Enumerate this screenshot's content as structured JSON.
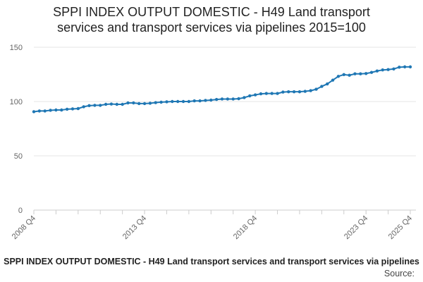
{
  "chart_data": {
    "type": "line",
    "title": "SPPI INDEX OUTPUT DOMESTIC - H49 Land transport services and transport services via pipelines 2015=100",
    "title_lines": [
      "SPPI INDEX OUTPUT DOMESTIC - H49 Land transport",
      "services and transport services via pipelines 2015=100"
    ],
    "xlabel": "SPPI INDEX OUTPUT DOMESTIC - H49 Land transport services and transport services via pipelines",
    "source_label": "Source:",
    "ylim": [
      0,
      150
    ],
    "yticks": [
      0,
      50,
      100,
      150
    ],
    "grid": true,
    "x_tick_labels": [
      {
        "index": 0,
        "label": "2008 Q4"
      },
      {
        "index": 20,
        "label": "2013 Q4"
      },
      {
        "index": 40,
        "label": "2018 Q4"
      },
      {
        "index": 60,
        "label": "2023 Q4"
      },
      {
        "index": 68,
        "label": "2025 Q4"
      }
    ],
    "series": [
      {
        "name": "SPPI INDEX OUTPUT DOMESTIC - H49 Land transport services and transport services via pipelines",
        "color": "#1f77b4",
        "x": [
          "2008 Q4",
          "2009 Q1",
          "2009 Q2",
          "2009 Q3",
          "2009 Q4",
          "2010 Q1",
          "2010 Q2",
          "2010 Q3",
          "2010 Q4",
          "2011 Q1",
          "2011 Q2",
          "2011 Q3",
          "2011 Q4",
          "2012 Q1",
          "2012 Q2",
          "2012 Q3",
          "2012 Q4",
          "2013 Q1",
          "2013 Q2",
          "2013 Q3",
          "2013 Q4",
          "2014 Q1",
          "2014 Q2",
          "2014 Q3",
          "2014 Q4",
          "2015 Q1",
          "2015 Q2",
          "2015 Q3",
          "2015 Q4",
          "2016 Q1",
          "2016 Q2",
          "2016 Q3",
          "2016 Q4",
          "2017 Q1",
          "2017 Q2",
          "2017 Q3",
          "2017 Q4",
          "2018 Q1",
          "2018 Q2",
          "2018 Q3",
          "2018 Q4",
          "2019 Q1",
          "2019 Q2",
          "2019 Q3",
          "2019 Q4",
          "2020 Q1",
          "2020 Q2",
          "2020 Q3",
          "2020 Q4",
          "2021 Q1",
          "2021 Q2",
          "2021 Q3",
          "2021 Q4",
          "2022 Q1",
          "2022 Q2",
          "2022 Q3",
          "2022 Q4",
          "2023 Q1",
          "2023 Q2",
          "2023 Q3",
          "2023 Q4",
          "2024 Q1",
          "2024 Q2",
          "2024 Q3",
          "2024 Q4",
          "2025 Q1",
          "2025 Q2",
          "2025 Q3",
          "2025 Q4"
        ],
        "values": [
          90.6,
          91.3,
          91.3,
          91.9,
          92.2,
          92.2,
          92.9,
          93.2,
          93.5,
          95.2,
          96.2,
          96.5,
          96.5,
          97.4,
          97.7,
          97.4,
          97.4,
          98.7,
          98.7,
          98.1,
          98.1,
          98.4,
          99.0,
          99.4,
          99.7,
          100.0,
          100.0,
          100.0,
          100.0,
          100.6,
          100.6,
          101.0,
          101.3,
          101.9,
          102.3,
          102.3,
          102.3,
          102.6,
          103.6,
          105.2,
          106.1,
          107.1,
          107.4,
          107.4,
          107.4,
          108.7,
          109.0,
          109.0,
          109.0,
          109.4,
          110.0,
          111.3,
          113.9,
          116.2,
          119.7,
          123.2,
          124.8,
          124.2,
          125.5,
          125.5,
          125.8,
          126.8,
          128.1,
          129.1,
          129.4,
          130.0,
          131.6,
          131.9,
          131.9
        ]
      }
    ]
  }
}
